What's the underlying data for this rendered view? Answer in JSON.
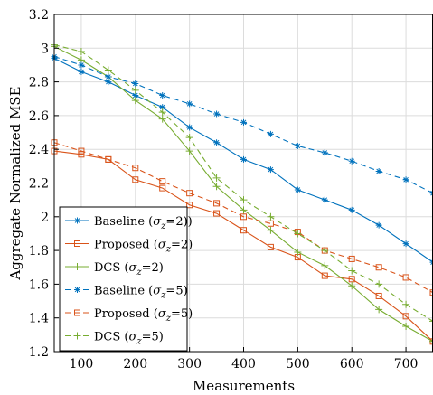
{
  "chart_data": {
    "type": "line",
    "title": "",
    "xlabel": "Measurements",
    "ylabel": "Aggregate Normalized MSE",
    "xlim": [
      50,
      750
    ],
    "ylim": [
      1.2,
      3.2
    ],
    "xticks": [
      "100",
      "200",
      "300",
      "400",
      "500",
      "600",
      "700"
    ],
    "yticks": [
      "1.2",
      "1.4",
      "1.6",
      "1.8",
      "2",
      "2.2",
      "2.4",
      "2.6",
      "2.8",
      "3",
      "3.2"
    ],
    "grid": true,
    "legend_position": "bottom-left",
    "x": [
      50,
      100,
      150,
      200,
      250,
      300,
      350,
      400,
      450,
      500,
      550,
      600,
      650,
      700,
      750
    ],
    "series": [
      {
        "name": "Baseline (σz=2))",
        "legend": {
          "main": "Baseline (",
          "greek": "σ",
          "sub": "z",
          "tail": "=2))"
        },
        "color": "#0072BD",
        "dash": "solid",
        "marker": "star",
        "values": [
          2.94,
          2.86,
          2.8,
          2.72,
          2.65,
          2.53,
          2.44,
          2.34,
          2.28,
          2.16,
          2.1,
          2.04,
          1.95,
          1.84,
          1.73
        ]
      },
      {
        "name": "Proposed (σz=2)",
        "legend": {
          "main": "Proposed (",
          "greek": "σ",
          "sub": "z",
          "tail": "=2)"
        },
        "color": "#D95319",
        "dash": "solid",
        "marker": "square",
        "values": [
          2.39,
          2.37,
          2.34,
          2.22,
          2.17,
          2.07,
          2.02,
          1.92,
          1.82,
          1.76,
          1.65,
          1.63,
          1.53,
          1.41,
          1.26
        ]
      },
      {
        "name": "DCS (σz=2)",
        "legend": {
          "main": "DCS (",
          "greek": "σ",
          "sub": "z",
          "tail": "=2)"
        },
        "color": "#77AC30",
        "dash": "solid",
        "marker": "plus",
        "values": [
          3.01,
          2.93,
          2.83,
          2.69,
          2.58,
          2.39,
          2.18,
          2.04,
          1.92,
          1.79,
          1.71,
          1.59,
          1.45,
          1.35,
          1.26
        ]
      },
      {
        "name": "Baseline (σz=5)",
        "legend": {
          "main": "Baseline (",
          "greek": "σ",
          "sub": "z",
          "tail": "=5)"
        },
        "color": "#0072BD",
        "dash": "dashed",
        "marker": "star",
        "values": [
          2.95,
          2.9,
          2.83,
          2.79,
          2.72,
          2.67,
          2.61,
          2.56,
          2.49,
          2.42,
          2.38,
          2.33,
          2.27,
          2.22,
          2.14
        ]
      },
      {
        "name": "Proposed (σz=5)",
        "legend": {
          "main": "Proposed (",
          "greek": "σ",
          "sub": "z",
          "tail": "=5)"
        },
        "color": "#D95319",
        "dash": "dashed",
        "marker": "square",
        "values": [
          2.44,
          2.39,
          2.34,
          2.29,
          2.21,
          2.14,
          2.08,
          2.0,
          1.96,
          1.91,
          1.8,
          1.75,
          1.7,
          1.64,
          1.55
        ]
      },
      {
        "name": "DCS (σz=5)",
        "legend": {
          "main": "DCS (",
          "greek": "σ",
          "sub": "z",
          "tail": "=5)"
        },
        "color": "#77AC30",
        "dash": "dashed",
        "marker": "plus",
        "values": [
          3.02,
          2.98,
          2.87,
          2.75,
          2.62,
          2.47,
          2.23,
          2.1,
          2.0,
          1.9,
          1.8,
          1.68,
          1.6,
          1.48,
          1.38
        ]
      }
    ]
  }
}
